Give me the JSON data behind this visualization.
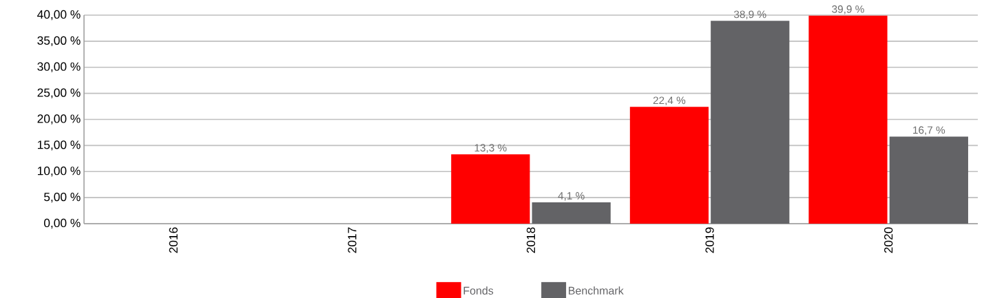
{
  "chart_data": {
    "type": "bar",
    "categories": [
      "2016",
      "2017",
      "2018",
      "2019",
      "2020"
    ],
    "series": [
      {
        "name": "Fonds",
        "color": "#ff0000",
        "values": [
          null,
          null,
          13.3,
          22.4,
          39.9
        ],
        "value_labels": [
          null,
          null,
          "13,3 %",
          "22,4 %",
          "39,9 %"
        ]
      },
      {
        "name": "Benchmark",
        "color": "#636366",
        "values": [
          null,
          null,
          4.1,
          38.9,
          16.7
        ],
        "value_labels": [
          null,
          null,
          "4,1 %",
          "38,9 %",
          "16,7 %"
        ]
      }
    ],
    "ylim": [
      0,
      40
    ],
    "yticks": [
      {
        "value": 0,
        "label": "0,00 %"
      },
      {
        "value": 5,
        "label": "5,00 %"
      },
      {
        "value": 10,
        "label": "10,00 %"
      },
      {
        "value": 15,
        "label": "15,00 %"
      },
      {
        "value": 20,
        "label": "20,00 %"
      },
      {
        "value": 25,
        "label": "25,00 %"
      },
      {
        "value": 30,
        "label": "30,00 %"
      },
      {
        "value": 35,
        "label": "35,00 %"
      },
      {
        "value": 40,
        "label": "40,00 %"
      }
    ],
    "grid": "y",
    "legend": "bottom"
  }
}
